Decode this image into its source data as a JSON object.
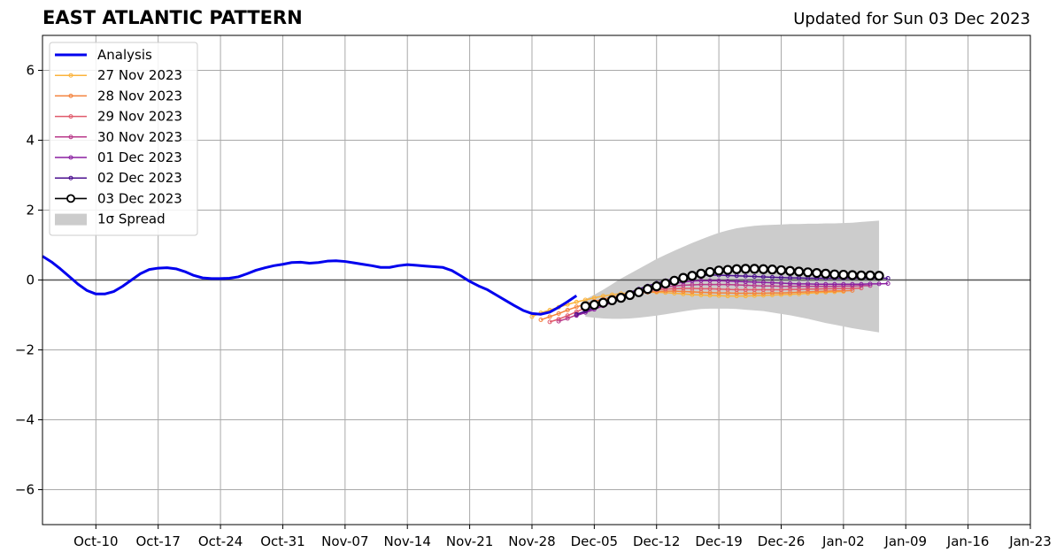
{
  "header": {
    "title": "EAST ATLANTIC PATTERN",
    "updated": "Updated for Sun 03 Dec 2023"
  },
  "chart_data": {
    "type": "line",
    "title": "EAST ATLANTIC PATTERN",
    "xlabel": "",
    "ylabel": "",
    "x_axis": {
      "type": "date",
      "range": [
        "2023-10-04",
        "2024-01-23"
      ],
      "ticks": [
        "2023-10-10",
        "2023-10-17",
        "2023-10-24",
        "2023-10-31",
        "2023-11-07",
        "2023-11-14",
        "2023-11-21",
        "2023-11-28",
        "2023-12-05",
        "2023-12-12",
        "2023-12-19",
        "2023-12-26",
        "2024-01-02",
        "2024-01-09",
        "2024-01-16",
        "2024-01-23"
      ],
      "tick_labels": [
        "Oct-10",
        "Oct-17",
        "Oct-24",
        "Oct-31",
        "Nov-07",
        "Nov-14",
        "Nov-21",
        "Nov-28",
        "Dec-05",
        "Dec-12",
        "Dec-19",
        "Dec-26",
        "Jan-02",
        "Jan-09",
        "Jan-16",
        "Jan-23"
      ]
    },
    "y_axis": {
      "range": [
        -7,
        7
      ],
      "ticks": [
        -6,
        -4,
        -2,
        0,
        2,
        4,
        6
      ],
      "tick_labels": [
        "−6",
        "−4",
        "−2",
        "0",
        "2",
        "4",
        "6"
      ]
    },
    "grid": true,
    "legend": {
      "position": "top-left"
    },
    "analysis": {
      "name": "Analysis",
      "color": "#0000ee",
      "points": [
        [
          "2023-10-04",
          0.68
        ],
        [
          "2023-10-05",
          0.52
        ],
        [
          "2023-10-06",
          0.32
        ],
        [
          "2023-10-07",
          0.1
        ],
        [
          "2023-10-08",
          -0.12
        ],
        [
          "2023-10-09",
          -0.3
        ],
        [
          "2023-10-10",
          -0.4
        ],
        [
          "2023-10-11",
          -0.4
        ],
        [
          "2023-10-12",
          -0.33
        ],
        [
          "2023-10-13",
          -0.18
        ],
        [
          "2023-10-14",
          0.0
        ],
        [
          "2023-10-15",
          0.18
        ],
        [
          "2023-10-16",
          0.3
        ],
        [
          "2023-10-17",
          0.34
        ],
        [
          "2023-10-18",
          0.35
        ],
        [
          "2023-10-19",
          0.32
        ],
        [
          "2023-10-20",
          0.24
        ],
        [
          "2023-10-21",
          0.13
        ],
        [
          "2023-10-22",
          0.06
        ],
        [
          "2023-10-23",
          0.04
        ],
        [
          "2023-10-24",
          0.04
        ],
        [
          "2023-10-25",
          0.05
        ],
        [
          "2023-10-26",
          0.09
        ],
        [
          "2023-10-27",
          0.18
        ],
        [
          "2023-10-28",
          0.28
        ],
        [
          "2023-10-29",
          0.35
        ],
        [
          "2023-10-30",
          0.41
        ],
        [
          "2023-10-31",
          0.45
        ],
        [
          "2023-11-01",
          0.5
        ],
        [
          "2023-11-02",
          0.51
        ],
        [
          "2023-11-03",
          0.48
        ],
        [
          "2023-11-04",
          0.5
        ],
        [
          "2023-11-05",
          0.54
        ],
        [
          "2023-11-06",
          0.55
        ],
        [
          "2023-11-07",
          0.53
        ],
        [
          "2023-11-08",
          0.49
        ],
        [
          "2023-11-09",
          0.45
        ],
        [
          "2023-11-10",
          0.41
        ],
        [
          "2023-11-11",
          0.36
        ],
        [
          "2023-11-12",
          0.36
        ],
        [
          "2023-11-13",
          0.41
        ],
        [
          "2023-11-14",
          0.44
        ],
        [
          "2023-11-15",
          0.42
        ],
        [
          "2023-11-16",
          0.4
        ],
        [
          "2023-11-17",
          0.38
        ],
        [
          "2023-11-18",
          0.36
        ],
        [
          "2023-11-19",
          0.27
        ],
        [
          "2023-11-20",
          0.12
        ],
        [
          "2023-11-21",
          -0.04
        ],
        [
          "2023-11-22",
          -0.17
        ],
        [
          "2023-11-23",
          -0.28
        ],
        [
          "2023-11-24",
          -0.43
        ],
        [
          "2023-11-25",
          -0.58
        ],
        [
          "2023-11-26",
          -0.73
        ],
        [
          "2023-11-27",
          -0.87
        ],
        [
          "2023-11-28",
          -0.96
        ],
        [
          "2023-11-29",
          -0.98
        ],
        [
          "2023-11-30",
          -0.92
        ],
        [
          "2023-12-01",
          -0.78
        ],
        [
          "2023-12-02",
          -0.62
        ],
        [
          "2023-12-03",
          -0.45
        ]
      ]
    },
    "forecasts": [
      {
        "name": "27 Nov 2023",
        "color": "#fbb33c",
        "start": "2023-11-28",
        "values": [
          -1.05,
          -0.94,
          -0.86,
          -0.78,
          -0.7,
          -0.63,
          -0.57,
          -0.51,
          -0.46,
          -0.42,
          -0.39,
          -0.37,
          -0.36,
          -0.35,
          -0.35,
          -0.36,
          -0.38,
          -0.4,
          -0.42,
          -0.43,
          -0.44,
          -0.45,
          -0.46,
          -0.46,
          -0.46,
          -0.45,
          -0.44,
          -0.43,
          -0.42,
          -0.41,
          -0.4,
          -0.38,
          -0.36,
          -0.35,
          -0.34,
          -0.33
        ]
      },
      {
        "name": "28 Nov 2023",
        "color": "#f4823c",
        "start": "2023-11-29",
        "values": [
          -1.14,
          -1.05,
          -0.96,
          -0.86,
          -0.77,
          -0.69,
          -0.61,
          -0.55,
          -0.49,
          -0.44,
          -0.4,
          -0.37,
          -0.35,
          -0.33,
          -0.32,
          -0.32,
          -0.33,
          -0.34,
          -0.35,
          -0.36,
          -0.37,
          -0.37,
          -0.38,
          -0.38,
          -0.38,
          -0.38,
          -0.37,
          -0.37,
          -0.36,
          -0.35,
          -0.34,
          -0.33,
          -0.32,
          -0.31,
          -0.31,
          -0.3
        ]
      },
      {
        "name": "29 Nov 2023",
        "color": "#e05a6b",
        "start": "2023-11-30",
        "values": [
          -1.2,
          -1.12,
          -1.02,
          -0.91,
          -0.8,
          -0.7,
          -0.61,
          -0.53,
          -0.46,
          -0.4,
          -0.35,
          -0.31,
          -0.28,
          -0.26,
          -0.25,
          -0.24,
          -0.24,
          -0.25,
          -0.25,
          -0.26,
          -0.27,
          -0.28,
          -0.28,
          -0.28,
          -0.28,
          -0.28,
          -0.28,
          -0.27,
          -0.27,
          -0.26,
          -0.26,
          -0.25,
          -0.25,
          -0.24,
          -0.24,
          -0.23
        ]
      },
      {
        "name": "30 Nov 2023",
        "color": "#b93a8a",
        "start": "2023-12-01",
        "values": [
          -1.18,
          -1.1,
          -1.0,
          -0.89,
          -0.79,
          -0.69,
          -0.59,
          -0.5,
          -0.42,
          -0.35,
          -0.29,
          -0.24,
          -0.2,
          -0.17,
          -0.15,
          -0.14,
          -0.13,
          -0.13,
          -0.13,
          -0.13,
          -0.14,
          -0.15,
          -0.16,
          -0.17,
          -0.17,
          -0.18,
          -0.18,
          -0.18,
          -0.18,
          -0.18,
          -0.18,
          -0.18,
          -0.17,
          -0.17,
          -0.16,
          -0.16
        ]
      },
      {
        "name": "01 Dec 2023",
        "color": "#8a1fa0",
        "start": "2023-12-03",
        "values": [
          -1.02,
          -0.93,
          -0.84,
          -0.74,
          -0.64,
          -0.54,
          -0.45,
          -0.36,
          -0.28,
          -0.21,
          -0.15,
          -0.1,
          -0.06,
          -0.03,
          -0.02,
          -0.02,
          -0.02,
          -0.03,
          -0.04,
          -0.05,
          -0.06,
          -0.07,
          -0.08,
          -0.09,
          -0.1,
          -0.11,
          -0.11,
          -0.12,
          -0.12,
          -0.12,
          -0.12,
          -0.12,
          -0.12,
          -0.11,
          -0.11,
          -0.1
        ]
      },
      {
        "name": "02 Dec 2023",
        "color": "#4b0f8f",
        "start": "2023-12-03",
        "values": [
          -0.98,
          -0.89,
          -0.79,
          -0.68,
          -0.57,
          -0.46,
          -0.36,
          -0.26,
          -0.17,
          -0.09,
          -0.02,
          0.04,
          0.08,
          0.11,
          0.13,
          0.14,
          0.14,
          0.13,
          0.12,
          0.11,
          0.1,
          0.09,
          0.08,
          0.07,
          0.06,
          0.06,
          0.05,
          0.05,
          0.05,
          0.05,
          0.05,
          0.05,
          0.05,
          0.05,
          0.05,
          0.05
        ]
      }
    ],
    "latest": {
      "name": "03 Dec 2023",
      "color": "#000000",
      "start": "2023-12-04",
      "values": [
        -0.75,
        -0.71,
        -0.65,
        -0.58,
        -0.51,
        -0.43,
        -0.35,
        -0.26,
        -0.18,
        -0.1,
        -0.02,
        0.06,
        0.12,
        0.18,
        0.23,
        0.27,
        0.29,
        0.31,
        0.32,
        0.32,
        0.31,
        0.3,
        0.28,
        0.26,
        0.24,
        0.22,
        0.2,
        0.18,
        0.16,
        0.15,
        0.14,
        0.13,
        0.13,
        0.12
      ]
    },
    "spread": {
      "name": "1σ Spread",
      "color": "#cccccc",
      "start": "2023-12-04",
      "upper": [
        -0.55,
        -0.42,
        -0.28,
        -0.12,
        0.04,
        0.18,
        0.32,
        0.46,
        0.6,
        0.72,
        0.84,
        0.95,
        1.06,
        1.16,
        1.26,
        1.35,
        1.42,
        1.48,
        1.52,
        1.55,
        1.57,
        1.58,
        1.59,
        1.6,
        1.6,
        1.61,
        1.61,
        1.62,
        1.62,
        1.63,
        1.64,
        1.66,
        1.68,
        1.7
      ],
      "lower": [
        -1.05,
        -1.08,
        -1.1,
        -1.11,
        -1.11,
        -1.1,
        -1.08,
        -1.05,
        -1.02,
        -0.98,
        -0.94,
        -0.9,
        -0.86,
        -0.83,
        -0.82,
        -0.82,
        -0.82,
        -0.83,
        -0.85,
        -0.87,
        -0.89,
        -0.93,
        -0.97,
        -1.01,
        -1.06,
        -1.11,
        -1.17,
        -1.23,
        -1.28,
        -1.33,
        -1.38,
        -1.42,
        -1.46,
        -1.5
      ]
    }
  }
}
